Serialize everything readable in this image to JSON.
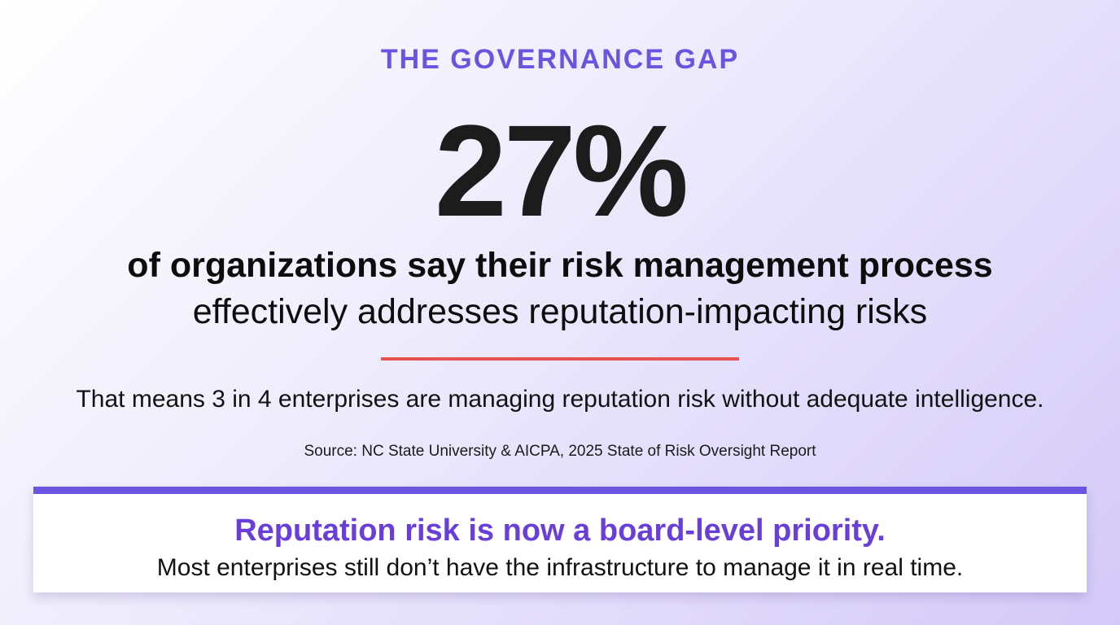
{
  "eyebrow": "THE GOVERNANCE GAP",
  "stat": {
    "value": "27%",
    "headline_bold": "of organizations say their risk management process",
    "headline_regular": "effectively addresses reputation-impacting risks"
  },
  "summary": "That means 3 in 4 enterprises are managing reputation risk without adequate intelligence.",
  "source": "Source: NC State University & AICPA, 2025 State of Risk Oversight Report",
  "callout": {
    "title": "Reputation risk is now a board-level priority.",
    "body": "Most enterprises still don’t have the infrastructure to manage it in real time."
  },
  "colors": {
    "accent": "#6a55e0",
    "divider": "#e8524e",
    "callout_title": "#6a3fd9",
    "text": "#0d0d0d"
  }
}
